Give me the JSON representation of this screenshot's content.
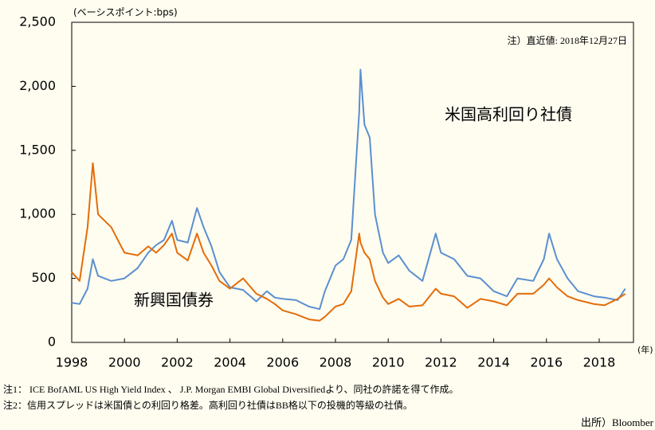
{
  "chart_data": {
    "type": "line",
    "y_axis_label": "(ベーシスポイント:bps)",
    "x_axis_label": "(年)",
    "annotation": "注）直近値: 2018年12月27日",
    "notes": [
      "注1： ICE BofAML US High Yield Index 、 J.P. Morgan EMBI Global Diversifiedより、同社の許諾を得て作成。",
      "注2：信用スプレッドは米国債との利回り格差。高利回り社債はBB格以下の投機的等級の社債。"
    ],
    "source": "出所）Bloomber",
    "x": [
      1998.0,
      1998.3,
      1998.6,
      1998.8,
      1999.0,
      1999.5,
      2000.0,
      2000.5,
      2000.9,
      2001.2,
      2001.5,
      2001.8,
      2002.0,
      2002.4,
      2002.75,
      2003.0,
      2003.3,
      2003.6,
      2004.0,
      2004.5,
      2005.0,
      2005.4,
      2005.7,
      2006.0,
      2006.5,
      2007.0,
      2007.4,
      2007.6,
      2008.0,
      2008.3,
      2008.6,
      2008.9,
      2008.95,
      2009.1,
      2009.3,
      2009.5,
      2009.8,
      2010.0,
      2010.4,
      2010.8,
      2011.3,
      2011.8,
      2012.0,
      2012.5,
      2013.0,
      2013.5,
      2014.0,
      2014.5,
      2014.9,
      2015.5,
      2015.9,
      2016.1,
      2016.4,
      2016.8,
      2017.2,
      2017.8,
      2018.2,
      2018.7,
      2018.99
    ],
    "series": [
      {
        "name": "米国高利回り社債",
        "color": "#5b8fd0",
        "values": [
          310,
          300,
          420,
          650,
          520,
          480,
          500,
          580,
          700,
          760,
          800,
          950,
          800,
          780,
          1050,
          900,
          750,
          550,
          430,
          410,
          320,
          400,
          350,
          340,
          330,
          280,
          260,
          400,
          600,
          650,
          800,
          1800,
          2130,
          1700,
          1600,
          1000,
          700,
          620,
          680,
          560,
          480,
          850,
          700,
          650,
          520,
          500,
          400,
          360,
          500,
          480,
          650,
          850,
          650,
          500,
          400,
          360,
          350,
          330,
          420
        ]
      },
      {
        "name": "新興国債券",
        "color": "#e46c0a",
        "values": [
          550,
          480,
          900,
          1400,
          1000,
          900,
          700,
          680,
          750,
          700,
          760,
          850,
          700,
          640,
          850,
          700,
          600,
          480,
          420,
          500,
          380,
          340,
          300,
          250,
          220,
          180,
          170,
          200,
          280,
          300,
          400,
          850,
          780,
          700,
          650,
          480,
          350,
          300,
          340,
          280,
          290,
          420,
          380,
          360,
          270,
          340,
          320,
          290,
          380,
          380,
          450,
          500,
          430,
          360,
          330,
          300,
          290,
          340,
          380
        ]
      }
    ],
    "xlim": [
      1998,
      2019.3
    ],
    "xticks": [
      1998,
      2000,
      2002,
      2004,
      2006,
      2008,
      2010,
      2012,
      2014,
      2016,
      2018
    ],
    "ylim": [
      0,
      2500
    ],
    "yticks": [
      0,
      500,
      {
        "value": 1000,
        "label": "1,000"
      },
      {
        "value": 1500,
        "label": "1,500"
      },
      {
        "value": 2000,
        "label": "2,000"
      },
      {
        "value": 2500,
        "label": "2,500"
      }
    ],
    "grid": false
  }
}
